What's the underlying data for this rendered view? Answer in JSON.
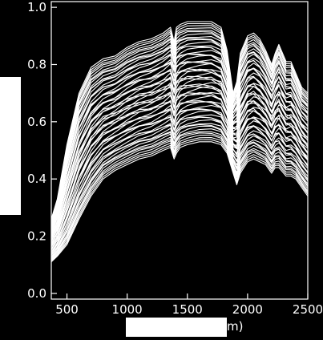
{
  "chart_data": {
    "type": "line",
    "title": "",
    "xlabel": "m)",
    "ylabel": "",
    "xlim": [
      370,
      2500
    ],
    "ylim": [
      -0.02,
      1.02
    ],
    "grid": false,
    "legend": "none",
    "x_ticks": [
      500,
      1000,
      1500,
      2000,
      2500
    ],
    "y_ticks": [
      0.0,
      0.2,
      0.4,
      0.6,
      0.8,
      1.0
    ],
    "x_tick_labels": [
      "500",
      "1000",
      "1500",
      "2000",
      "2500"
    ],
    "y_tick_labels": [
      "0.0",
      "0.2",
      "0.4",
      "0.6",
      "0.8",
      "1.0"
    ],
    "line_color": "#ffffff",
    "background_color": "#000000",
    "wavelength_nodes": [
      370,
      420,
      500,
      600,
      700,
      800,
      900,
      1000,
      1100,
      1200,
      1300,
      1360,
      1390,
      1410,
      1440,
      1500,
      1600,
      1700,
      1780,
      1830,
      1880,
      1910,
      1940,
      2000,
      2050,
      2100,
      2150,
      2200,
      2230,
      2260,
      2280,
      2320,
      2360,
      2400,
      2450,
      2500
    ],
    "upper_envelope": [
      0.26,
      0.33,
      0.52,
      0.7,
      0.79,
      0.82,
      0.83,
      0.86,
      0.88,
      0.89,
      0.91,
      0.93,
      0.88,
      0.93,
      0.94,
      0.95,
      0.95,
      0.95,
      0.93,
      0.85,
      0.7,
      0.74,
      0.84,
      0.9,
      0.91,
      0.89,
      0.85,
      0.8,
      0.84,
      0.87,
      0.85,
      0.81,
      0.81,
      0.77,
      0.72,
      0.7
    ],
    "lower_envelope": [
      0.11,
      0.13,
      0.17,
      0.26,
      0.34,
      0.4,
      0.43,
      0.45,
      0.47,
      0.48,
      0.5,
      0.51,
      0.47,
      0.49,
      0.51,
      0.52,
      0.53,
      0.53,
      0.52,
      0.49,
      0.42,
      0.38,
      0.42,
      0.46,
      0.47,
      0.46,
      0.45,
      0.42,
      0.44,
      0.44,
      0.43,
      0.41,
      0.41,
      0.4,
      0.37,
      0.34
    ],
    "series_count": 58
  }
}
